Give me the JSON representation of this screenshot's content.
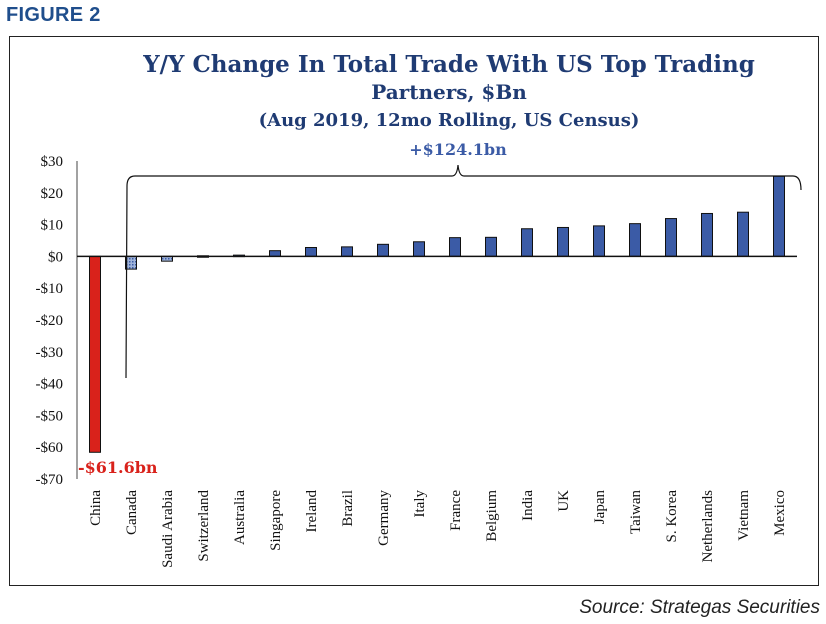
{
  "figure_label": "FIGURE 2",
  "source": "Source: Strategas Securities",
  "colors": {
    "title": "#1f3b73",
    "positive_bar": "#3b5ba6",
    "china_bar": "#d9221b",
    "highlight_text_red": "#d9221b",
    "highlight_text_blue": "#3b5ba6"
  },
  "chart_data": {
    "type": "bar",
    "title_lines": [
      "Y/Y Change In Total Trade With US Top Trading",
      "Partners, $Bn",
      "(Aug 2019, 12mo Rolling, US Census)"
    ],
    "categories": [
      "China",
      "Canada",
      "Saudi Arabia",
      "Switzerland",
      "Australia",
      "Singapore",
      "Ireland",
      "Brazil",
      "Germany",
      "Italy",
      "France",
      "Belgium",
      "India",
      "UK",
      "Japan",
      "Taiwan",
      "S. Korea",
      "Netherlands",
      "Vietnam",
      "Mexico"
    ],
    "values": [
      -61.6,
      -4.0,
      -1.5,
      0.2,
      0.4,
      1.8,
      2.8,
      3.0,
      3.8,
      4.6,
      5.9,
      6.0,
      8.7,
      9.1,
      9.6,
      10.3,
      11.9,
      13.5,
      13.9,
      25.2
    ],
    "ylim": [
      -70,
      30
    ],
    "yticks": [
      30,
      20,
      10,
      0,
      -10,
      -20,
      -30,
      -40,
      -50,
      -60,
      -70
    ],
    "ytick_labels": [
      "$30",
      "$20",
      "$10",
      "$0",
      "-$10",
      "-$20",
      "-$30",
      "-$40",
      "-$50",
      "-$60",
      "-$70"
    ],
    "annotations": {
      "negative": "-$61.6bn",
      "positive": "+$124.1bn"
    },
    "legend": "none",
    "grid": false
  }
}
